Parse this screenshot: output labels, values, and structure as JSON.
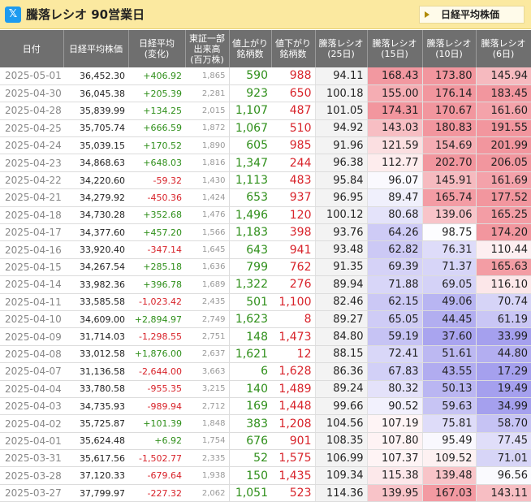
{
  "header": {
    "x_icon_label": "𝕏",
    "title": "騰落レシオ 90営業日",
    "nikkei_button": "日経平均株価"
  },
  "table": {
    "columns": [
      "日付",
      "日経平均株価",
      "日経平均\n(変化)",
      "東証一部\n出来高\n(百万株)",
      "値上がり\n銘柄数",
      "値下がり\n銘柄数",
      "騰落レシオ\n(25日)",
      "騰落レシオ\n(15日)",
      "騰落レシオ\n(10日)",
      "騰落レシオ\n(6日)"
    ],
    "rows": [
      {
        "date": "2025-05-01",
        "price": "36,452.30",
        "chg": "+406.92",
        "vol": "1,865",
        "up": "590",
        "down": "988",
        "r25": "94.11",
        "r15": "168.43",
        "r10": "173.80",
        "r6": "145.94"
      },
      {
        "date": "2025-04-30",
        "price": "36,045.38",
        "chg": "+205.39",
        "vol": "2,281",
        "up": "923",
        "down": "650",
        "r25": "100.18",
        "r15": "155.00",
        "r10": "176.14",
        "r6": "183.45"
      },
      {
        "date": "2025-04-28",
        "price": "35,839.99",
        "chg": "+134.25",
        "vol": "2,015",
        "up": "1,107",
        "down": "487",
        "r25": "101.05",
        "r15": "174.31",
        "r10": "170.67",
        "r6": "161.60"
      },
      {
        "date": "2025-04-25",
        "price": "35,705.74",
        "chg": "+666.59",
        "vol": "1,872",
        "up": "1,067",
        "down": "510",
        "r25": "94.92",
        "r15": "143.03",
        "r10": "180.83",
        "r6": "191.55"
      },
      {
        "date": "2025-04-24",
        "price": "35,039.15",
        "chg": "+170.52",
        "vol": "1,890",
        "up": "605",
        "down": "985",
        "r25": "91.96",
        "r15": "121.59",
        "r10": "154.69",
        "r6": "201.99"
      },
      {
        "date": "2025-04-23",
        "price": "34,868.63",
        "chg": "+648.03",
        "vol": "1,816",
        "up": "1,347",
        "down": "244",
        "r25": "96.38",
        "r15": "112.77",
        "r10": "202.70",
        "r6": "206.05"
      },
      {
        "date": "2025-04-22",
        "price": "34,220.60",
        "chg": "-59.32",
        "vol": "1,430",
        "up": "1,113",
        "down": "483",
        "r25": "95.84",
        "r15": "96.07",
        "r10": "145.91",
        "r6": "161.69"
      },
      {
        "date": "2025-04-21",
        "price": "34,279.92",
        "chg": "-450.36",
        "vol": "1,424",
        "up": "653",
        "down": "937",
        "r25": "96.95",
        "r15": "89.47",
        "r10": "165.74",
        "r6": "177.52"
      },
      {
        "date": "2025-04-18",
        "price": "34,730.28",
        "chg": "+352.68",
        "vol": "1,476",
        "up": "1,496",
        "down": "120",
        "r25": "100.12",
        "r15": "80.68",
        "r10": "139.06",
        "r6": "165.25"
      },
      {
        "date": "2025-04-17",
        "price": "34,377.60",
        "chg": "+457.20",
        "vol": "1,566",
        "up": "1,183",
        "down": "398",
        "r25": "93.76",
        "r15": "64.26",
        "r10": "98.75",
        "r6": "174.20"
      },
      {
        "date": "2025-04-16",
        "price": "33,920.40",
        "chg": "-347.14",
        "vol": "1,645",
        "up": "643",
        "down": "941",
        "r25": "93.48",
        "r15": "62.82",
        "r10": "76.31",
        "r6": "110.44"
      },
      {
        "date": "2025-04-15",
        "price": "34,267.54",
        "chg": "+285.18",
        "vol": "1,636",
        "up": "799",
        "down": "762",
        "r25": "91.35",
        "r15": "69.39",
        "r10": "71.37",
        "r6": "165.63"
      },
      {
        "date": "2025-04-14",
        "price": "33,982.36",
        "chg": "+396.78",
        "vol": "1,689",
        "up": "1,322",
        "down": "276",
        "r25": "89.94",
        "r15": "71.88",
        "r10": "69.05",
        "r6": "116.10"
      },
      {
        "date": "2025-04-11",
        "price": "33,585.58",
        "chg": "-1,023.42",
        "vol": "2,435",
        "up": "501",
        "down": "1,100",
        "r25": "82.46",
        "r15": "62.15",
        "r10": "49.06",
        "r6": "70.74"
      },
      {
        "date": "2025-04-10",
        "price": "34,609.00",
        "chg": "+2,894.97",
        "vol": "2,749",
        "up": "1,623",
        "down": "8",
        "r25": "89.27",
        "r15": "65.05",
        "r10": "44.45",
        "r6": "61.19"
      },
      {
        "date": "2025-04-09",
        "price": "31,714.03",
        "chg": "-1,298.55",
        "vol": "2,751",
        "up": "148",
        "down": "1,473",
        "r25": "84.80",
        "r15": "59.19",
        "r10": "37.60",
        "r6": "33.99"
      },
      {
        "date": "2025-04-08",
        "price": "33,012.58",
        "chg": "+1,876.00",
        "vol": "2,637",
        "up": "1,621",
        "down": "12",
        "r25": "88.15",
        "r15": "72.41",
        "r10": "51.61",
        "r6": "44.80"
      },
      {
        "date": "2025-04-07",
        "price": "31,136.58",
        "chg": "-2,644.00",
        "vol": "3,663",
        "up": "6",
        "down": "1,628",
        "r25": "86.36",
        "r15": "67.83",
        "r10": "43.55",
        "r6": "17.29"
      },
      {
        "date": "2025-04-04",
        "price": "33,780.58",
        "chg": "-955.35",
        "vol": "3,215",
        "up": "140",
        "down": "1,489",
        "r25": "89.24",
        "r15": "80.32",
        "r10": "50.13",
        "r6": "19.49"
      },
      {
        "date": "2025-04-03",
        "price": "34,735.93",
        "chg": "-989.94",
        "vol": "2,712",
        "up": "169",
        "down": "1,448",
        "r25": "99.66",
        "r15": "90.52",
        "r10": "59.63",
        "r6": "34.99"
      },
      {
        "date": "2025-04-02",
        "price": "35,725.87",
        "chg": "+101.39",
        "vol": "1,848",
        "up": "383",
        "down": "1,208",
        "r25": "104.56",
        "r15": "107.19",
        "r10": "75.81",
        "r6": "58.70"
      },
      {
        "date": "2025-04-01",
        "price": "35,624.48",
        "chg": "+6.92",
        "vol": "1,754",
        "up": "676",
        "down": "901",
        "r25": "108.35",
        "r15": "107.80",
        "r10": "95.49",
        "r6": "77.45"
      },
      {
        "date": "2025-03-31",
        "price": "35,617.56",
        "chg": "-1,502.77",
        "vol": "2,335",
        "up": "52",
        "down": "1,575",
        "r25": "106.99",
        "r15": "107.37",
        "r10": "109.52",
        "r6": "71.01"
      },
      {
        "date": "2025-03-28",
        "price": "37,120.33",
        "chg": "-679.64",
        "vol": "1,938",
        "up": "150",
        "down": "1,435",
        "r25": "109.34",
        "r15": "115.38",
        "r10": "139.48",
        "r6": "96.56"
      },
      {
        "date": "2025-03-27",
        "price": "37,799.97",
        "chg": "-227.32",
        "vol": "2,062",
        "up": "1,051",
        "down": "523",
        "r25": "114.36",
        "r15": "139.95",
        "r10": "167.03",
        "r6": "143.11"
      }
    ]
  },
  "colors": {
    "header_bg": "#fbe9a0",
    "table_header_bg": "#6f6f6f",
    "up_green": "#2f8f1a",
    "down_red": "#d8232a",
    "hot": "#f2a0a8",
    "cold": "#a9a4ee"
  }
}
